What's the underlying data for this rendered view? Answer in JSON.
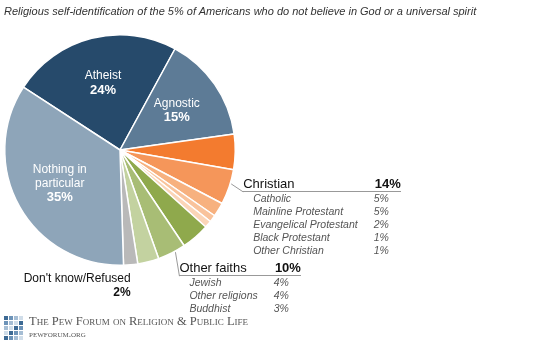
{
  "chart_data": {
    "type": "pie",
    "title": "Religious self-identification of the 5% of Americans who do not believe in God or a universal spirit",
    "categories": [
      "Atheist",
      "Agnostic",
      "Catholic",
      "Mainline Protestant",
      "Evangelical Protestant",
      "Black Protestant",
      "Other Christian",
      "Jewish",
      "Other religions",
      "Buddhist",
      "Don't know/Refused",
      "Nothing in particular"
    ],
    "values": [
      24,
      15,
      5,
      5,
      2,
      1,
      1,
      4,
      4,
      3,
      2,
      35
    ],
    "value_labels": [
      "24%",
      "15%",
      "5%",
      "5%",
      "2%",
      "1%",
      "1%",
      "4%",
      "4%",
      "3%",
      "2%",
      "35%"
    ],
    "colors": [
      "#264a6b",
      "#5d7b96",
      "#f37b2f",
      "#f5965a",
      "#f7b17f",
      "#f9c39c",
      "#fbd5b8",
      "#8fa94c",
      "#a8bd75",
      "#c3d2a0",
      "#b9b9b9",
      "#8ea5b9"
    ],
    "groups": [
      {
        "name": "Christian",
        "value": 14,
        "value_label": "14%",
        "categories": [
          "Catholic",
          "Mainline Protestant",
          "Evangelical Protestant",
          "Black Protestant",
          "Other Christian"
        ]
      },
      {
        "name": "Other faiths",
        "value": 10,
        "value_label": "10%",
        "categories": [
          "Jewish",
          "Other religions",
          "Buddhist"
        ]
      }
    ],
    "data_labels": true,
    "source": {
      "name": "The Pew Forum on Religion & Public Life",
      "url": "pewforum.org"
    }
  }
}
